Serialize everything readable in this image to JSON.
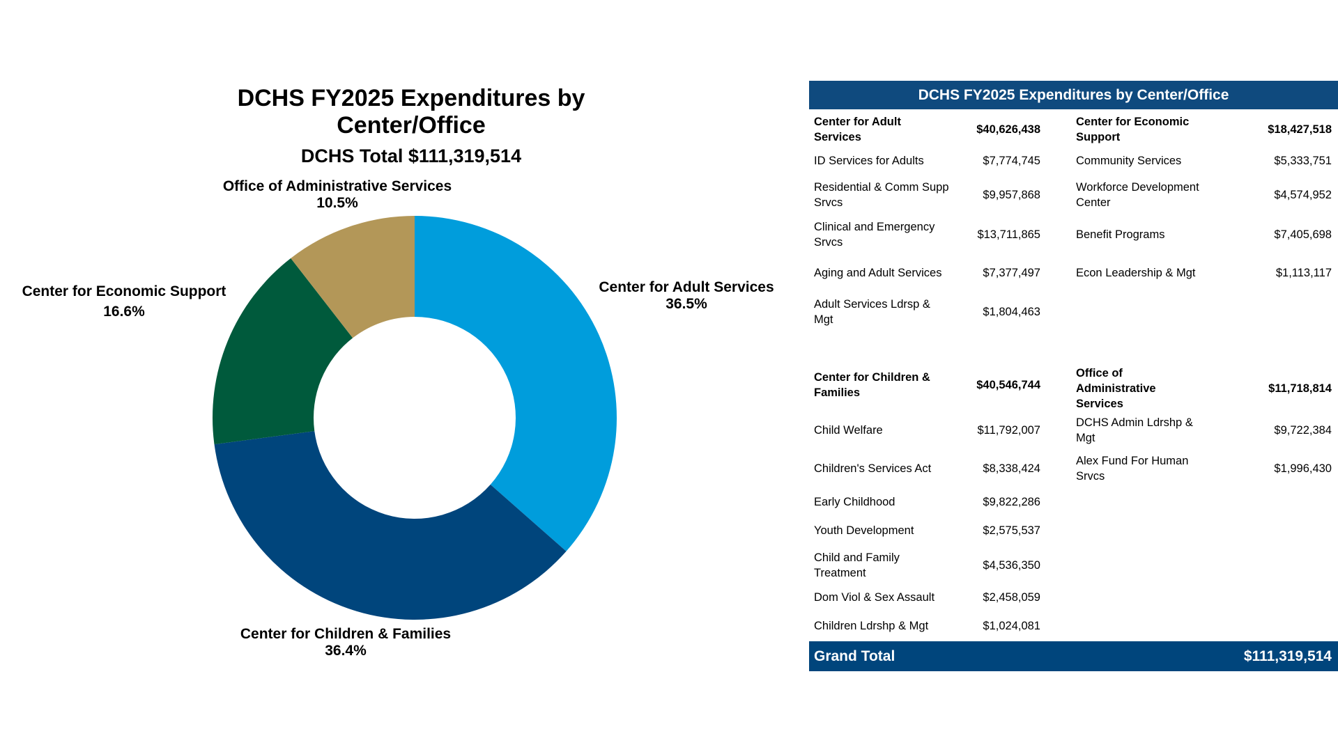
{
  "chart_data": {
    "type": "pie",
    "style": "donut",
    "title": "DCHS FY2025 Expenditures by Center/Office",
    "subtitle": "DCHS Total $111,319,514",
    "categories": [
      "Center for Adult Services",
      "Center for Children & Families",
      "Center for Economic Support",
      "Office of Administrative Services"
    ],
    "values": [
      36.5,
      36.4,
      16.6,
      10.5
    ],
    "labels": [
      "36.5%",
      "36.4%",
      "16.6%",
      "10.5%"
    ],
    "colors": [
      "#009ddc",
      "#00457c",
      "#005a3c",
      "#b39758"
    ]
  },
  "table": {
    "title": "DCHS FY2025 Expenditures by Center/Office",
    "groups": [
      {
        "name": "Center for Adult Services",
        "total": "$40,626,438",
        "items": [
          {
            "label": "ID Services for Adults",
            "value": "$7,774,745"
          },
          {
            "label": "Residential & Comm Supp Srvcs",
            "value": "$9,957,868"
          },
          {
            "label": "Clinical and Emergency Srvcs",
            "value": "$13,711,865"
          },
          {
            "label": "Aging and Adult Services",
            "value": "$7,377,497"
          },
          {
            "label": "Adult Services Ldrsp & Mgt",
            "value": "$1,804,463"
          }
        ]
      },
      {
        "name": "Center for Economic Support",
        "total": "$18,427,518",
        "items": [
          {
            "label": "Community Services",
            "value": "$5,333,751"
          },
          {
            "label": "Workforce Development Center",
            "value": "$4,574,952"
          },
          {
            "label": "Benefit Programs",
            "value": "$7,405,698"
          },
          {
            "label": "Econ Leadership & Mgt",
            "value": "$1,113,117"
          }
        ]
      },
      {
        "name": "Center for Children & Families",
        "total": "$40,546,744",
        "items": [
          {
            "label": "Child Welfare",
            "value": "$11,792,007"
          },
          {
            "label": "Children's Services Act",
            "value": "$8,338,424"
          },
          {
            "label": "Early Childhood",
            "value": "$9,822,286"
          },
          {
            "label": "Youth Development",
            "value": "$2,575,537"
          },
          {
            "label": "Child and Family Treatment",
            "value": "$4,536,350"
          },
          {
            "label": "Dom Viol & Sex Assault",
            "value": "$2,458,059"
          },
          {
            "label": "Children Ldrshp & Mgt",
            "value": "$1,024,081"
          }
        ]
      },
      {
        "name": "Office of Administrative Services",
        "total": "$11,718,814",
        "items": [
          {
            "label": "DCHS Admin Ldrshp & Mgt",
            "value": "$9,722,384"
          },
          {
            "label": "Alex Fund For Human Srvcs",
            "value": "$1,996,430"
          }
        ]
      }
    ],
    "grand_total_label": "Grand Total",
    "grand_total_value": "$111,319,514"
  }
}
